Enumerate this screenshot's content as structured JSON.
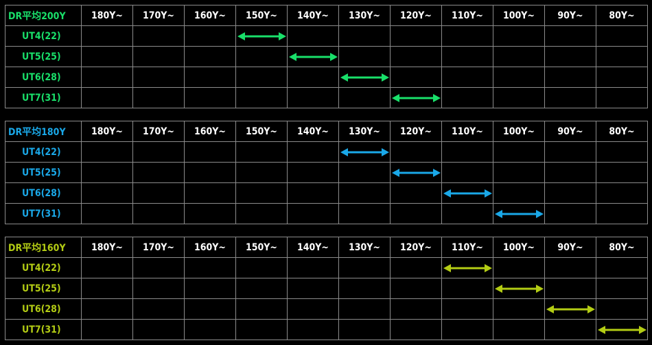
{
  "columns": [
    "180Y~",
    "170Y~",
    "160Y~",
    "150Y~",
    "140Y~",
    "130Y~",
    "120Y~",
    "110Y~",
    "100Y~",
    "90Y~",
    "80Y~"
  ],
  "tables": [
    {
      "title": "DR平均200Y",
      "color": "#19e06a",
      "rows": [
        {
          "label": "UT4(22)",
          "from": "150Y~",
          "to": "140Y~"
        },
        {
          "label": "UT5(25)",
          "from": "140Y~",
          "to": "130Y~"
        },
        {
          "label": "UT6(28)",
          "from": "130Y~",
          "to": "120Y~"
        },
        {
          "label": "UT7(31)",
          "from": "120Y~",
          "to": "110Y~"
        }
      ]
    },
    {
      "title": "DR平均180Y",
      "color": "#1aa8e8",
      "rows": [
        {
          "label": "UT4(22)",
          "from": "130Y~",
          "to": "120Y~"
        },
        {
          "label": "UT5(25)",
          "from": "120Y~",
          "to": "110Y~"
        },
        {
          "label": "UT6(28)",
          "from": "110Y~",
          "to": "100Y~"
        },
        {
          "label": "UT7(31)",
          "from": "100Y~",
          "to": "90Y~"
        }
      ]
    },
    {
      "title": "DR平均160Y",
      "color": "#b3cc14",
      "rows": [
        {
          "label": "UT4(22)",
          "from": "110Y~",
          "to": "100Y~"
        },
        {
          "label": "UT5(25)",
          "from": "100Y~",
          "to": "90Y~"
        },
        {
          "label": "UT6(28)",
          "from": "90Y~",
          "to": "80Y~"
        },
        {
          "label": "UT7(31)",
          "from": "80Y~",
          "to": "80Y~"
        }
      ]
    }
  ]
}
